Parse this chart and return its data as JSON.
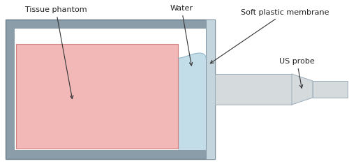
{
  "bg_color": "#ffffff",
  "outer_box_color": "#8c9daa",
  "inner_box_color": "#ffffff",
  "phantom_color": "#f2b8b8",
  "phantom_edge_color": "#d08080",
  "water_color": "#c2dde8",
  "water_edge_color": "#90b8c8",
  "membrane_color": "#c5d5de",
  "probe_color": "#d5dadd",
  "probe_edge_color": "#9aacb8",
  "labels": {
    "tissue": "Tissue phantom",
    "water": "Water",
    "membrane": "Soft plastic membrane",
    "probe": "US probe"
  },
  "figsize": [
    5.0,
    2.38
  ],
  "dpi": 100
}
